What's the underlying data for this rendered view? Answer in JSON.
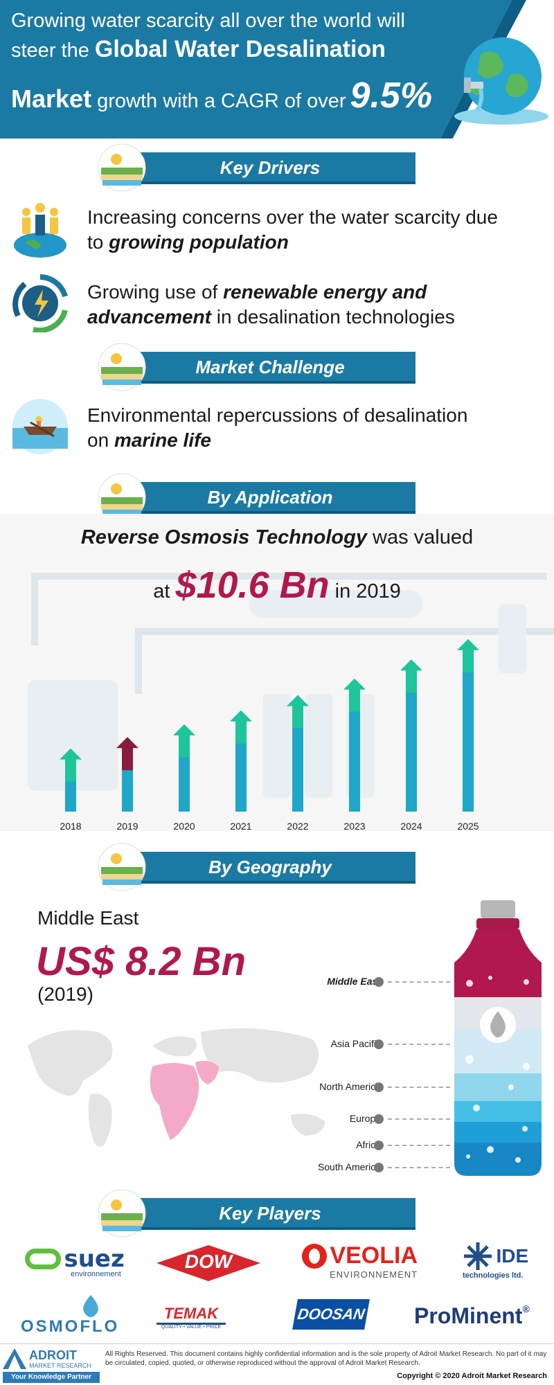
{
  "header": {
    "line1": "Growing water scarcity all over the world will",
    "line2_pre": "steer the ",
    "line2_bold": "Global Water Desalination",
    "line3_bold": "Market",
    "line3_mid": " growth with a CAGR of over",
    "cagr": "9.5%"
  },
  "sections": {
    "key_drivers": "Key Drivers",
    "market_challenge": "Market Challenge",
    "by_application": "By Application",
    "by_geography": "By Geography",
    "key_players": "Key Players"
  },
  "drivers": [
    {
      "text_pre": "Increasing concerns over the water scarcity due",
      "text_line2_pre": "to ",
      "text_bold": "growing population",
      "icon": "population-globe-icon"
    },
    {
      "text_pre": "Growing use of ",
      "text_bold": "renewable energy and",
      "text_line2_bold": "advancement",
      "text_line2_post": " in desalination technologies",
      "icon": "renewable-energy-icon"
    }
  ],
  "challenge": {
    "text_pre": "Environmental repercussions of desalination",
    "text_line2_pre": "on ",
    "text_bold": "marine life",
    "icon": "boat-sea-icon"
  },
  "application": {
    "title_bold": "Reverse Osmosis Technology",
    "title_post": " was valued",
    "value_pre": "at ",
    "value": "$10.6 Bn",
    "value_post": " in 2019"
  },
  "chart_data": {
    "type": "bar",
    "categories": [
      "2018",
      "2019",
      "2020",
      "2021",
      "2022",
      "2023",
      "2024",
      "2025"
    ],
    "values": [
      9.7,
      10.6,
      11.6,
      12.7,
      13.9,
      15.2,
      16.7,
      18.3
    ],
    "highlight": "2019",
    "colors": {
      "bar": "#1ea7c7",
      "arrow": "#1ec49a",
      "highlight": "#8a1c3e"
    }
  },
  "geography": {
    "region": "Middle East",
    "value": "US$ 8.2 Bn",
    "year": "(2019)",
    "legend": [
      "Middle East",
      "Asia Pacific",
      "North America",
      "Europe",
      "Africa",
      "South America"
    ]
  },
  "players": [
    {
      "name": "suez",
      "sub": "environnement"
    },
    {
      "name": "DOW",
      "sub": ""
    },
    {
      "name": "VEOLIA",
      "sub": "ENVIRONNEMENT"
    },
    {
      "name": "IDE",
      "sub": "technologies ltd."
    },
    {
      "name": "OSMOFLO",
      "sub": ""
    },
    {
      "name": "TEMAK",
      "sub": "QUALITY • VALUE • PRICE"
    },
    {
      "name": "DOOSAN",
      "sub": ""
    },
    {
      "name": "ProMinent",
      "sub": "®"
    }
  ],
  "footer": {
    "brand": "ADROIT",
    "brand_sub": "MARKET RESEARCH",
    "tagline": "Your Knowledge Partner",
    "rights": "All Rights Reserved. This document contains highly confidential information and is the sole property of Adroit Market Research. No part of it may be circulated, copied, quoted, or otherwise reproduced without the approval of Adroit Market Research.",
    "copyright": "Copyright © 2020 Adroit Market Research"
  },
  "colors": {
    "primary": "#1b7aa3",
    "dark": "#0d5d85",
    "accent": "#b0184e"
  }
}
